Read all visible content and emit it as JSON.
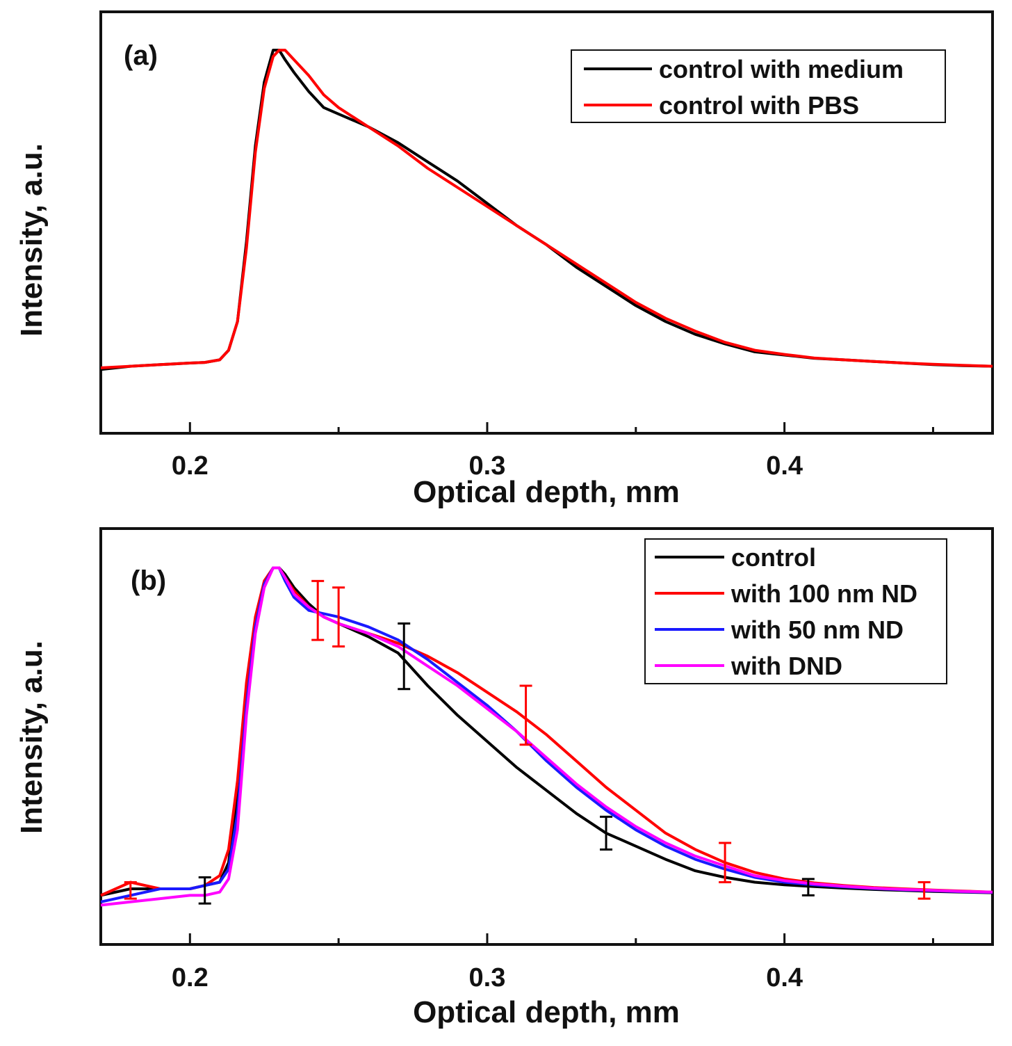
{
  "chart_data": [
    {
      "panel": "(a)",
      "type": "line",
      "xlabel": "Optical depth, mm",
      "ylabel": "Intensity, a.u.",
      "xlim": [
        0.17,
        0.47
      ],
      "ylim": [
        -0.2,
        1.12
      ],
      "x_ticks": [
        0.2,
        0.3,
        0.4
      ],
      "x_tick_labels": [
        "0.2",
        "0.3",
        "0.4"
      ],
      "y_ticks_shown": false,
      "legend_position": "top-right",
      "series": [
        {
          "name": "control with medium",
          "color": "#000000",
          "x": [
            0.17,
            0.18,
            0.19,
            0.2,
            0.205,
            0.21,
            0.213,
            0.216,
            0.219,
            0.222,
            0.225,
            0.228,
            0.23,
            0.232,
            0.235,
            0.24,
            0.245,
            0.25,
            0.26,
            0.27,
            0.28,
            0.29,
            0.3,
            0.31,
            0.32,
            0.33,
            0.34,
            0.35,
            0.36,
            0.37,
            0.38,
            0.39,
            0.4,
            0.41,
            0.42,
            0.43,
            0.44,
            0.45,
            0.46,
            0.47
          ],
          "y": [
            0.0,
            0.01,
            0.015,
            0.02,
            0.022,
            0.03,
            0.06,
            0.15,
            0.4,
            0.7,
            0.9,
            1.0,
            1.0,
            0.97,
            0.93,
            0.87,
            0.82,
            0.8,
            0.76,
            0.71,
            0.65,
            0.59,
            0.52,
            0.45,
            0.39,
            0.32,
            0.26,
            0.2,
            0.15,
            0.11,
            0.08,
            0.055,
            0.045,
            0.035,
            0.03,
            0.025,
            0.02,
            0.015,
            0.012,
            0.01
          ]
        },
        {
          "name": "control with PBS",
          "color": "#ff0000",
          "x": [
            0.17,
            0.18,
            0.19,
            0.2,
            0.205,
            0.21,
            0.213,
            0.216,
            0.219,
            0.222,
            0.225,
            0.228,
            0.23,
            0.232,
            0.235,
            0.24,
            0.245,
            0.25,
            0.26,
            0.27,
            0.28,
            0.29,
            0.3,
            0.31,
            0.32,
            0.33,
            0.34,
            0.35,
            0.36,
            0.37,
            0.38,
            0.39,
            0.4,
            0.41,
            0.42,
            0.43,
            0.44,
            0.45,
            0.46,
            0.47
          ],
          "y": [
            0.005,
            0.01,
            0.015,
            0.02,
            0.022,
            0.03,
            0.06,
            0.15,
            0.38,
            0.68,
            0.88,
            0.98,
            1.0,
            1.0,
            0.97,
            0.92,
            0.86,
            0.82,
            0.76,
            0.7,
            0.63,
            0.57,
            0.51,
            0.45,
            0.39,
            0.33,
            0.27,
            0.21,
            0.16,
            0.12,
            0.085,
            0.06,
            0.047,
            0.036,
            0.03,
            0.025,
            0.02,
            0.016,
            0.013,
            0.01
          ]
        }
      ]
    },
    {
      "panel": "(b)",
      "type": "line",
      "xlabel": "Optical depth, mm",
      "ylabel": "Intensity, a.u.",
      "xlim": [
        0.17,
        0.47
      ],
      "ylim": [
        -0.15,
        1.12
      ],
      "x_ticks": [
        0.2,
        0.3,
        0.4
      ],
      "x_tick_labels": [
        "0.2",
        "0.3",
        "0.4"
      ],
      "y_ticks_shown": false,
      "legend_position": "top-right",
      "series": [
        {
          "name": "control",
          "color": "#000000",
          "x": [
            0.17,
            0.18,
            0.19,
            0.2,
            0.205,
            0.21,
            0.213,
            0.216,
            0.219,
            0.222,
            0.225,
            0.228,
            0.23,
            0.232,
            0.235,
            0.24,
            0.245,
            0.25,
            0.26,
            0.27,
            0.28,
            0.29,
            0.3,
            0.31,
            0.32,
            0.33,
            0.34,
            0.35,
            0.36,
            0.37,
            0.38,
            0.39,
            0.4,
            0.41,
            0.42,
            0.43,
            0.44,
            0.45,
            0.46,
            0.47
          ],
          "y": [
            0.0,
            0.02,
            0.02,
            0.02,
            0.03,
            0.04,
            0.1,
            0.3,
            0.6,
            0.82,
            0.95,
            1.0,
            1.0,
            0.98,
            0.94,
            0.89,
            0.85,
            0.83,
            0.79,
            0.74,
            0.64,
            0.55,
            0.47,
            0.39,
            0.32,
            0.25,
            0.19,
            0.15,
            0.11,
            0.075,
            0.055,
            0.04,
            0.032,
            0.027,
            0.022,
            0.018,
            0.015,
            0.012,
            0.01,
            0.008
          ]
        },
        {
          "name": "with 100 nm ND",
          "color": "#ff0000",
          "x": [
            0.17,
            0.18,
            0.19,
            0.2,
            0.205,
            0.21,
            0.213,
            0.216,
            0.219,
            0.222,
            0.225,
            0.228,
            0.23,
            0.232,
            0.235,
            0.24,
            0.245,
            0.25,
            0.26,
            0.27,
            0.28,
            0.29,
            0.3,
            0.31,
            0.32,
            0.33,
            0.34,
            0.35,
            0.36,
            0.37,
            0.38,
            0.39,
            0.4,
            0.41,
            0.42,
            0.43,
            0.44,
            0.45,
            0.46,
            0.47
          ],
          "y": [
            0.0,
            0.04,
            0.02,
            0.02,
            0.03,
            0.06,
            0.14,
            0.35,
            0.65,
            0.85,
            0.96,
            1.0,
            1.0,
            0.97,
            0.93,
            0.88,
            0.85,
            0.83,
            0.8,
            0.77,
            0.73,
            0.68,
            0.62,
            0.56,
            0.49,
            0.41,
            0.33,
            0.26,
            0.19,
            0.14,
            0.1,
            0.07,
            0.05,
            0.038,
            0.03,
            0.024,
            0.02,
            0.016,
            0.013,
            0.01
          ]
        },
        {
          "name": "with 50 nm ND",
          "color": "#1a1aff",
          "x": [
            0.17,
            0.18,
            0.19,
            0.2,
            0.205,
            0.21,
            0.213,
            0.216,
            0.219,
            0.222,
            0.225,
            0.228,
            0.23,
            0.232,
            0.235,
            0.24,
            0.245,
            0.25,
            0.26,
            0.27,
            0.28,
            0.29,
            0.3,
            0.31,
            0.32,
            0.33,
            0.34,
            0.35,
            0.36,
            0.37,
            0.38,
            0.39,
            0.4,
            0.41,
            0.42,
            0.43,
            0.44,
            0.45,
            0.46,
            0.47
          ],
          "y": [
            -0.02,
            0.0,
            0.02,
            0.02,
            0.03,
            0.04,
            0.08,
            0.25,
            0.58,
            0.82,
            0.95,
            1.0,
            1.0,
            0.96,
            0.91,
            0.87,
            0.86,
            0.85,
            0.82,
            0.78,
            0.72,
            0.65,
            0.58,
            0.5,
            0.41,
            0.33,
            0.26,
            0.2,
            0.15,
            0.11,
            0.08,
            0.055,
            0.04,
            0.032,
            0.026,
            0.021,
            0.017,
            0.014,
            0.011,
            0.009
          ]
        },
        {
          "name": "with DND",
          "color": "#ff00ff",
          "x": [
            0.17,
            0.18,
            0.19,
            0.2,
            0.205,
            0.21,
            0.213,
            0.216,
            0.219,
            0.222,
            0.225,
            0.228,
            0.23,
            0.232,
            0.235,
            0.24,
            0.245,
            0.25,
            0.26,
            0.27,
            0.28,
            0.29,
            0.3,
            0.31,
            0.32,
            0.33,
            0.34,
            0.35,
            0.36,
            0.37,
            0.38,
            0.39,
            0.4,
            0.41,
            0.42,
            0.43,
            0.44,
            0.45,
            0.46,
            0.47
          ],
          "y": [
            -0.03,
            -0.02,
            -0.01,
            0.0,
            0.0,
            0.01,
            0.05,
            0.2,
            0.55,
            0.8,
            0.94,
            1.0,
            1.0,
            0.97,
            0.92,
            0.88,
            0.85,
            0.83,
            0.8,
            0.76,
            0.7,
            0.64,
            0.57,
            0.5,
            0.42,
            0.34,
            0.27,
            0.21,
            0.16,
            0.12,
            0.09,
            0.06,
            0.045,
            0.035,
            0.028,
            0.022,
            0.018,
            0.015,
            0.012,
            0.01
          ]
        }
      ],
      "error_bars": [
        {
          "series": "with 100 nm ND",
          "color": "#ff0000",
          "x": 0.18,
          "y": 0.015,
          "err": 0.025
        },
        {
          "series": "control",
          "color": "#000000",
          "x": 0.205,
          "y": 0.015,
          "err": 0.04
        },
        {
          "series": "with 100 nm ND",
          "color": "#ff0000",
          "x": 0.243,
          "y": 0.87,
          "err": 0.09
        },
        {
          "series": "with 100 nm ND",
          "color": "#ff0000",
          "x": 0.25,
          "y": 0.85,
          "err": 0.09
        },
        {
          "series": "control",
          "color": "#000000",
          "x": 0.272,
          "y": 0.73,
          "err": 0.1
        },
        {
          "series": "with 100 nm ND",
          "color": "#ff0000",
          "x": 0.313,
          "y": 0.55,
          "err": 0.09
        },
        {
          "series": "control",
          "color": "#000000",
          "x": 0.34,
          "y": 0.19,
          "err": 0.05
        },
        {
          "series": "with 100 nm ND",
          "color": "#ff0000",
          "x": 0.38,
          "y": 0.1,
          "err": 0.06
        },
        {
          "series": "control",
          "color": "#000000",
          "x": 0.408,
          "y": 0.025,
          "err": 0.025
        },
        {
          "series": "with 100 nm ND",
          "color": "#ff0000",
          "x": 0.447,
          "y": 0.015,
          "err": 0.025
        }
      ]
    }
  ]
}
